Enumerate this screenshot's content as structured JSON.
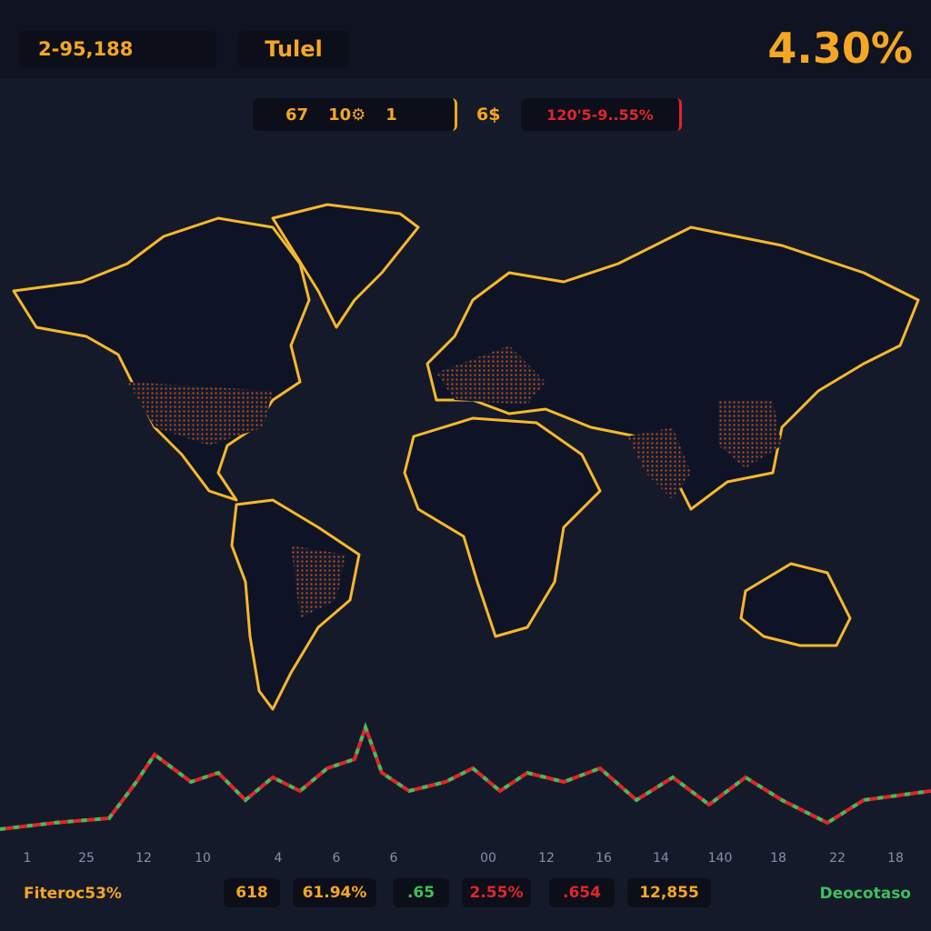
{
  "header": {
    "left_value": "2-95,188",
    "title": "Tulel",
    "change": "4.30%"
  },
  "toolbar": {
    "items": [
      "67",
      "10⚙",
      "1"
    ],
    "currency": "6$",
    "range": "120'5-9..55%"
  },
  "timeline": {
    "labels": [
      "1",
      "25",
      "12",
      "10",
      "4",
      "6",
      "6",
      "00",
      "12",
      "16",
      "14",
      "140",
      "18",
      "22",
      "18"
    ]
  },
  "footer": {
    "left": "Fiteroc53%",
    "stats": [
      "618",
      "61.94%",
      ".65",
      "2.55%",
      ".654",
      "12,855"
    ],
    "right": "Deocotaso"
  }
}
